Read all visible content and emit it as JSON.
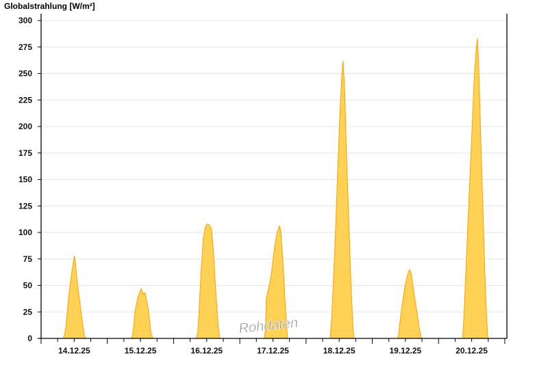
{
  "chart_data": {
    "type": "area",
    "title": "Globalstrahlung [W/m²]",
    "watermark": "Rohdaten",
    "ylabel": "Globalstrahlung [W/m²]",
    "xlabel": "",
    "ylim": [
      0,
      300
    ],
    "yticks": [
      0,
      25,
      50,
      75,
      100,
      125,
      150,
      175,
      200,
      225,
      250,
      275,
      300
    ],
    "grid": true,
    "legend": "none",
    "fill_color": "#ffd154",
    "line_color": "#ffa000",
    "x_unit": "hour of day",
    "days": [
      {
        "label": "14.12.25",
        "points": [
          [
            7.9,
            0
          ],
          [
            8.5,
            3
          ],
          [
            9,
            12
          ],
          [
            10,
            40
          ],
          [
            11,
            60
          ],
          [
            11.7,
            72
          ],
          [
            12.1,
            78
          ],
          [
            12.5,
            70
          ],
          [
            13,
            55
          ],
          [
            14,
            35
          ],
          [
            15,
            15
          ],
          [
            15.7,
            2
          ],
          [
            16.3,
            0
          ]
        ]
      },
      {
        "label": "15.12.25",
        "points": [
          [
            8.6,
            0
          ],
          [
            9,
            2
          ],
          [
            9.5,
            10
          ],
          [
            10,
            25
          ],
          [
            11,
            38
          ],
          [
            12,
            45
          ],
          [
            12.3,
            47
          ],
          [
            13,
            42
          ],
          [
            13.7,
            43
          ],
          [
            14.3,
            35
          ],
          [
            15,
            25
          ],
          [
            15.8,
            5
          ],
          [
            16.5,
            0
          ]
        ]
      },
      {
        "label": "16.12.25",
        "points": [
          [
            8.2,
            0
          ],
          [
            8.7,
            5
          ],
          [
            9,
            15
          ],
          [
            9.5,
            40
          ],
          [
            10,
            65
          ],
          [
            10.8,
            95
          ],
          [
            11.5,
            105
          ],
          [
            12.2,
            108
          ],
          [
            13,
            107
          ],
          [
            13.8,
            103
          ],
          [
            14.5,
            80
          ],
          [
            15.3,
            45
          ],
          [
            16.2,
            10
          ],
          [
            16.8,
            0
          ]
        ]
      },
      {
        "label": "17.12.25",
        "points": [
          [
            8.9,
            0
          ],
          [
            9.3,
            10
          ],
          [
            9.6,
            38
          ],
          [
            10.5,
            48
          ],
          [
            11.5,
            62
          ],
          [
            12.5,
            85
          ],
          [
            13.5,
            100
          ],
          [
            14.3,
            106
          ],
          [
            14.8,
            103
          ],
          [
            15.7,
            70
          ],
          [
            16.5,
            30
          ],
          [
            17.3,
            0
          ]
        ]
      },
      {
        "label": "18.12.25",
        "points": [
          [
            8.7,
            0
          ],
          [
            9.3,
            20
          ],
          [
            10,
            60
          ],
          [
            10.8,
            110
          ],
          [
            11.5,
            160
          ],
          [
            12.3,
            215
          ],
          [
            13,
            250
          ],
          [
            13.4,
            262
          ],
          [
            14,
            235
          ],
          [
            14.7,
            170
          ],
          [
            15.5,
            110
          ],
          [
            16.3,
            50
          ],
          [
            17,
            10
          ],
          [
            17.4,
            0
          ]
        ]
      },
      {
        "label": "19.12.25",
        "points": [
          [
            9.1,
            0
          ],
          [
            9.5,
            3
          ],
          [
            10,
            15
          ],
          [
            11,
            35
          ],
          [
            12,
            52
          ],
          [
            13,
            62
          ],
          [
            13.6,
            65
          ],
          [
            14.2,
            60
          ],
          [
            15,
            45
          ],
          [
            16,
            28
          ],
          [
            17,
            10
          ],
          [
            17.8,
            0
          ]
        ]
      },
      {
        "label": "20.12.25",
        "points": [
          [
            8.7,
            0
          ],
          [
            9.2,
            20
          ],
          [
            10,
            70
          ],
          [
            11,
            130
          ],
          [
            12,
            190
          ],
          [
            13,
            250
          ],
          [
            13.7,
            275
          ],
          [
            14.1,
            283
          ],
          [
            14.6,
            255
          ],
          [
            15.3,
            190
          ],
          [
            16,
            130
          ],
          [
            16.8,
            60
          ],
          [
            17.5,
            15
          ],
          [
            17.9,
            0
          ]
        ]
      }
    ]
  }
}
